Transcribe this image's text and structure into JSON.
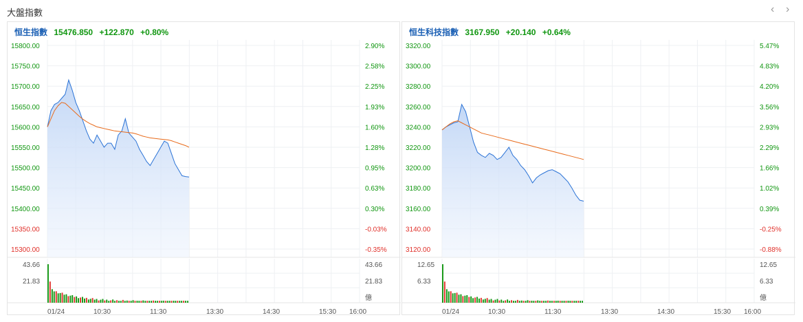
{
  "section_title": "大盤指數",
  "nav": {
    "prev": "‹",
    "next": "›"
  },
  "charts": [
    {
      "name": "恒生指數",
      "value": "15476.850",
      "change": "+122.870",
      "pct": "+0.80%",
      "left_labels": [
        "15800.00",
        "15750.00",
        "15700.00",
        "15650.00",
        "15600.00",
        "15550.00",
        "15500.00",
        "15450.00",
        "15400.00",
        "15350.00",
        "15300.00"
      ],
      "right_labels": [
        "2.90%",
        "2.58%",
        "2.25%",
        "1.93%",
        "1.60%",
        "1.28%",
        "0.95%",
        "0.63%",
        "0.30%",
        "-0.03%",
        "-0.35%"
      ],
      "vol_labels": [
        "43.66",
        "21.83"
      ],
      "vol_unit": "億",
      "time_labels": [
        "01/24",
        "10:30",
        "11:30",
        "13:30",
        "14:30",
        "15:30",
        "16:00"
      ],
      "price_range": [
        15300,
        15800
      ],
      "vol_max": 43.66,
      "price_series": [
        15600,
        15640,
        15655,
        15660,
        15670,
        15680,
        15715,
        15690,
        15660,
        15640,
        15615,
        15590,
        15570,
        15560,
        15580,
        15565,
        15550,
        15560,
        15560,
        15545,
        15580,
        15590,
        15620,
        15585,
        15575,
        15565,
        15545,
        15530,
        15515,
        15505,
        15520,
        15535,
        15550,
        15565,
        15560,
        15535,
        15510,
        15495,
        15480,
        15478,
        15477
      ],
      "avg_series": [
        15600,
        15620,
        15640,
        15652,
        15660,
        15658,
        15650,
        15642,
        15634,
        15626,
        15619,
        15613,
        15608,
        15604,
        15600,
        15598,
        15596,
        15594,
        15592,
        15590,
        15589,
        15588,
        15587,
        15586,
        15585,
        15583,
        15580,
        15577,
        15575,
        15573,
        15572,
        15571,
        15570,
        15569,
        15568,
        15566,
        15563,
        15560,
        15557,
        15554,
        15550
      ]
    },
    {
      "name": "恒生科技指數",
      "value": "3167.950",
      "change": "+20.140",
      "pct": "+0.64%",
      "left_labels": [
        "3320.00",
        "3300.00",
        "3280.00",
        "3260.00",
        "3240.00",
        "3220.00",
        "3200.00",
        "3180.00",
        "3160.00",
        "3140.00",
        "3120.00"
      ],
      "right_labels": [
        "5.47%",
        "4.83%",
        "4.20%",
        "3.56%",
        "2.93%",
        "2.29%",
        "1.66%",
        "1.02%",
        "0.39%",
        "-0.25%",
        "-0.88%"
      ],
      "vol_labels": [
        "12.65",
        "6.33"
      ],
      "vol_unit": "億",
      "time_labels": [
        "01/24",
        "10:30",
        "11:30",
        "13:30",
        "14:30",
        "15:30",
        "16:00"
      ],
      "price_range": [
        3120,
        3320
      ],
      "vol_max": 12.65,
      "price_series": [
        3237,
        3240,
        3242,
        3244,
        3245,
        3262,
        3255,
        3240,
        3225,
        3215,
        3212,
        3210,
        3214,
        3212,
        3208,
        3210,
        3215,
        3220,
        3212,
        3208,
        3202,
        3198,
        3192,
        3185,
        3190,
        3193,
        3195,
        3197,
        3198,
        3196,
        3194,
        3190,
        3186,
        3180,
        3173,
        3168,
        3167
      ],
      "avg_series": [
        3237,
        3240,
        3243,
        3245,
        3246,
        3244,
        3242,
        3240,
        3238,
        3236,
        3234,
        3233,
        3232,
        3231,
        3230,
        3229,
        3228,
        3227,
        3226,
        3225,
        3224,
        3223,
        3222,
        3221,
        3220,
        3219,
        3218,
        3217,
        3216,
        3215,
        3214,
        3213,
        3212,
        3211,
        3210,
        3209,
        3208
      ]
    }
  ]
}
